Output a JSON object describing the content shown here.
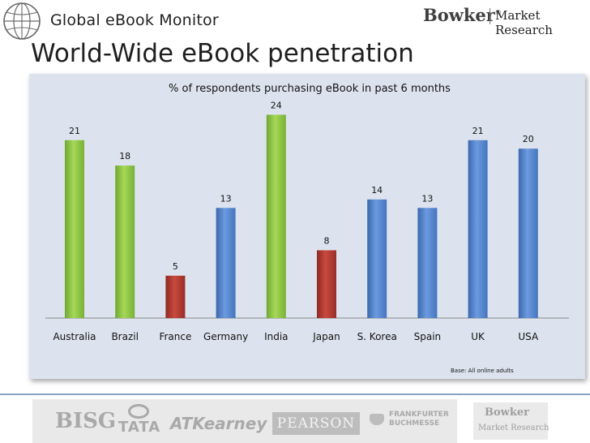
{
  "header": {
    "monitor_label": "Global eBook Monitor",
    "brand": "Bowker",
    "brand_mark": "®",
    "brand_tagline": "Market Research"
  },
  "slide": {
    "title": "World-Wide eBook penetration"
  },
  "colors": {
    "green_bar": "#8cc63f",
    "red_bar": "#b83a30",
    "blue_bar": "#4f7fc8",
    "panel_bg": "#dde3ee"
  },
  "chart_data": {
    "type": "bar",
    "title": "% of respondents purchasing eBook in past 6 months",
    "categories": [
      "Australia",
      "Brazil",
      "France",
      "Germany",
      "India",
      "Japan",
      "S. Korea",
      "Spain",
      "UK",
      "USA"
    ],
    "values": [
      21,
      18,
      5,
      13,
      24,
      8,
      14,
      13,
      21,
      20
    ],
    "bar_colors": [
      "green",
      "green",
      "red",
      "blue",
      "green",
      "red",
      "blue",
      "blue",
      "blue",
      "blue"
    ],
    "ylim": [
      0,
      25
    ],
    "grid": false,
    "note": "Base: All online adults"
  },
  "footer": {
    "sponsors": [
      "BISG",
      "TATA",
      "ATKearney",
      "PEARSON",
      "FRANKFURTER BUCHMESSE"
    ],
    "bowker_box": {
      "brand": "Bowker",
      "tagline": "Market Research"
    }
  }
}
